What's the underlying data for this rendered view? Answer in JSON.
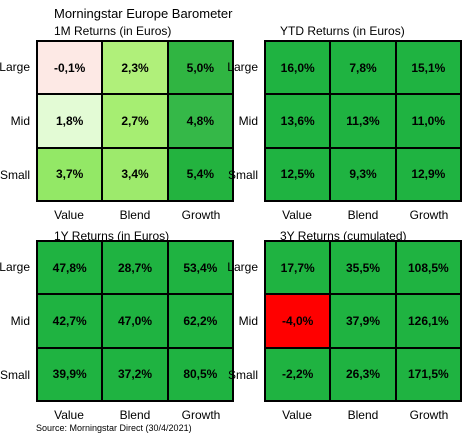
{
  "title": "Morningstar Europe Barometer",
  "source": "Source: Morningstar Direct (30/4/2021)",
  "chart_data": [
    {
      "type": "heatmap",
      "title": "1M Returns (in Euros)",
      "rows": [
        "Large",
        "Mid",
        "Small"
      ],
      "columns": [
        "Value",
        "Blend",
        "Growth"
      ],
      "values": [
        [
          "-0,1%",
          "2,3%",
          "5,0%"
        ],
        [
          "1,8%",
          "2,7%",
          "4,8%"
        ],
        [
          "3,7%",
          "3,4%",
          "5,4%"
        ]
      ],
      "colors": [
        [
          "#fde9e5",
          "#b0f07a",
          "#30b542"
        ],
        [
          "#e3fbd5",
          "#a6ee72",
          "#35b848"
        ],
        [
          "#93e866",
          "#9dea6c",
          "#23b33f"
        ]
      ]
    },
    {
      "type": "heatmap",
      "title": "YTD Returns (in Euros)",
      "rows": [
        "Large",
        "Mid",
        "Small"
      ],
      "columns": [
        "Value",
        "Blend",
        "Growth"
      ],
      "values": [
        [
          "16,0%",
          "7,8%",
          "15,1%"
        ],
        [
          "13,6%",
          "11,3%",
          "11,0%"
        ],
        [
          "12,5%",
          "9,3%",
          "12,9%"
        ]
      ],
      "colors": [
        [
          "#1fb341",
          "#1fb341",
          "#1fb341"
        ],
        [
          "#1fb341",
          "#1fb341",
          "#1fb341"
        ],
        [
          "#1fb341",
          "#1fb341",
          "#1fb341"
        ]
      ]
    },
    {
      "type": "heatmap",
      "title": "1Y Returns (in Euros)",
      "rows": [
        "Large",
        "Mid",
        "Small"
      ],
      "columns": [
        "Value",
        "Blend",
        "Growth"
      ],
      "values": [
        [
          "47,8%",
          "28,7%",
          "53,4%"
        ],
        [
          "42,7%",
          "47,0%",
          "62,2%"
        ],
        [
          "39,9%",
          "37,2%",
          "80,5%"
        ]
      ],
      "colors": [
        [
          "#1fb341",
          "#1fb341",
          "#1fb341"
        ],
        [
          "#1fb341",
          "#1fb341",
          "#1fb341"
        ],
        [
          "#1fb341",
          "#1fb341",
          "#1fb341"
        ]
      ]
    },
    {
      "type": "heatmap",
      "title": "3Y Returns (cumulated)",
      "rows": [
        "Large",
        "Mid",
        "Small"
      ],
      "columns": [
        "Value",
        "Blend",
        "Growth"
      ],
      "values": [
        [
          "17,7%",
          "35,5%",
          "108,5%"
        ],
        [
          "-4,0%",
          "37,9%",
          "126,1%"
        ],
        [
          "-2,2%",
          "26,3%",
          "171,5%"
        ]
      ],
      "colors": [
        [
          "#1fb341",
          "#1fb341",
          "#1fb341"
        ],
        [
          "#ff0000",
          "#1fb341",
          "#1fb341"
        ],
        [
          "#1fb341",
          "#1fb341",
          "#1fb341"
        ]
      ]
    }
  ]
}
